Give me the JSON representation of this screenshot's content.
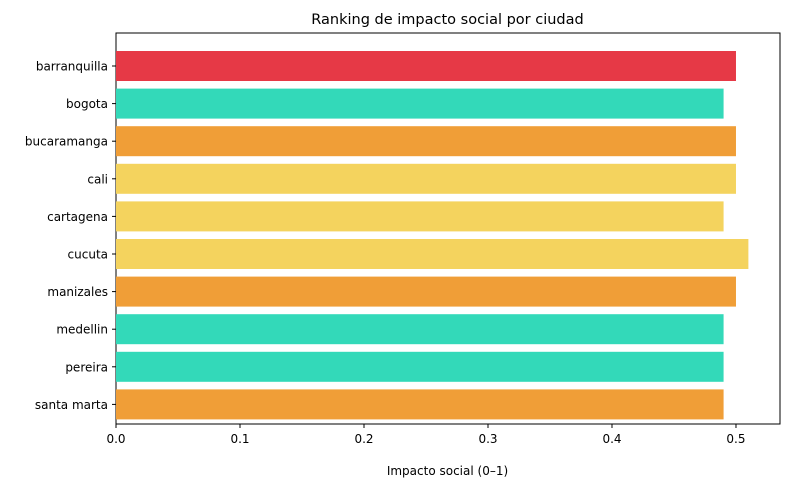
{
  "chart_data": {
    "type": "bar",
    "orientation": "horizontal",
    "title": "Ranking de impacto social por ciudad",
    "xlabel": "Impacto social (0–1)",
    "ylabel": "",
    "categories": [
      "barranquilla",
      "bogota",
      "bucaramanga",
      "cali",
      "cartagena",
      "cucuta",
      "manizales",
      "medellin",
      "pereira",
      "santa marta"
    ],
    "values": [
      0.5,
      0.49,
      0.5,
      0.5,
      0.49,
      0.51,
      0.5,
      0.49,
      0.49,
      0.49
    ],
    "colors": [
      "#e63946",
      "#33d9b9",
      "#f09e37",
      "#f4d35e",
      "#f4d35e",
      "#f4d35e",
      "#f09e37",
      "#33d9b9",
      "#33d9b9",
      "#f09e37"
    ],
    "xlim": [
      0,
      0.5355
    ],
    "xticks": [
      0.0,
      0.1,
      0.2,
      0.3,
      0.4,
      0.5
    ],
    "xtick_labels": [
      "0.0",
      "0.1",
      "0.2",
      "0.3",
      "0.4",
      "0.5"
    ],
    "grid": false,
    "legend": "none"
  }
}
